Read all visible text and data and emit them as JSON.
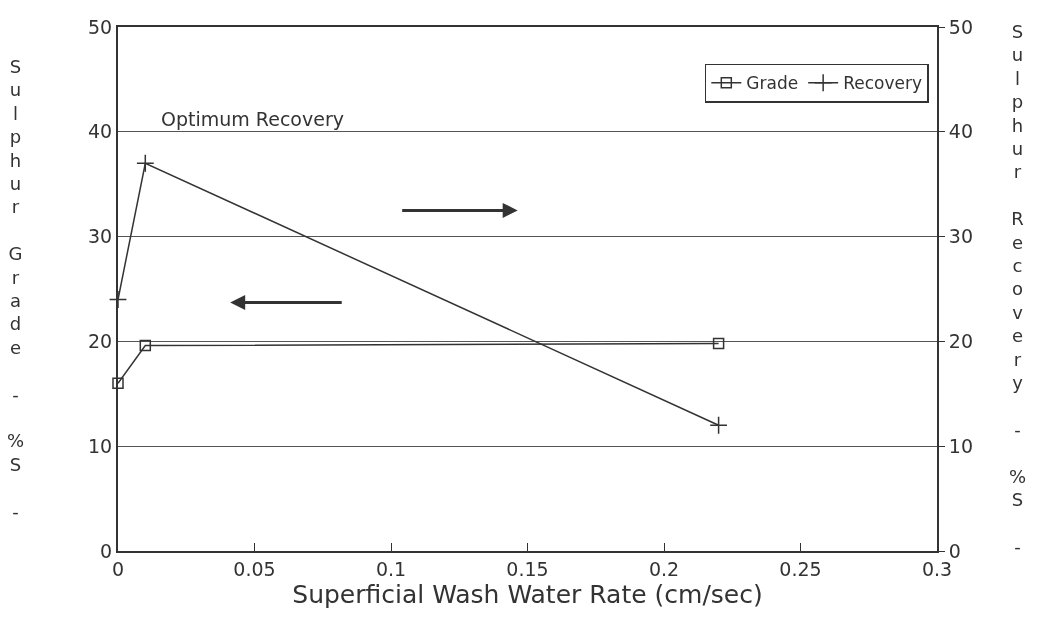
{
  "chart_data": {
    "type": "line",
    "xlabel": "Superficial Wash Water Rate (cm/sec)",
    "ylabel": "Sulphur Grade - %S -",
    "y2label": "Sulphur Recovery - %S -",
    "x": [
      0,
      0.01,
      0.22
    ],
    "series": [
      {
        "name": "Grade",
        "color": "#333333",
        "marker": "square",
        "values": [
          16,
          19.6,
          19.8
        ]
      },
      {
        "name": "Recovery",
        "color": "#333333",
        "marker": "cross",
        "axis": "y2",
        "values": [
          24,
          37,
          12
        ]
      }
    ],
    "xlim": [
      0,
      0.3
    ],
    "xticks": [
      0,
      0.05,
      0.1,
      0.15,
      0.2,
      0.25,
      0.3
    ],
    "ylim": [
      0,
      50
    ],
    "yticks": [
      0,
      10,
      20,
      30,
      40,
      50
    ],
    "y2lim": [
      0,
      50
    ],
    "y2ticks": [
      0,
      10,
      20,
      30,
      40,
      50
    ],
    "annotations": [
      "Optimum Recovery"
    ],
    "grid": "y",
    "legend": "top right"
  }
}
